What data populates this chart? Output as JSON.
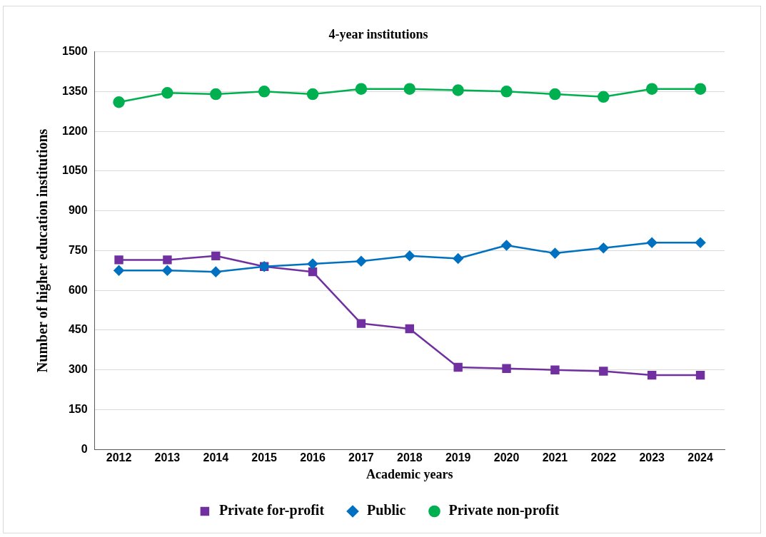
{
  "chart_data": {
    "type": "line",
    "title": "4-year institutions",
    "xlabel": "Academic years",
    "ylabel": "Number of higher education institutions",
    "categories": [
      "2012",
      "2013",
      "2014",
      "2015",
      "2016",
      "2017",
      "2018",
      "2019",
      "2020",
      "2021",
      "2022",
      "2023",
      "2024"
    ],
    "series": [
      {
        "name": "Private for-profit",
        "color": "#7030a0",
        "marker": "square",
        "values": [
          715,
          715,
          730,
          690,
          670,
          475,
          455,
          310,
          305,
          300,
          295,
          280,
          280
        ]
      },
      {
        "name": "Public",
        "color": "#0070c0",
        "marker": "diamond",
        "values": [
          675,
          675,
          670,
          690,
          700,
          710,
          730,
          720,
          770,
          740,
          760,
          780,
          780
        ]
      },
      {
        "name": "Private non-profit",
        "color": "#00b050",
        "marker": "circle",
        "values": [
          1310,
          1345,
          1340,
          1350,
          1340,
          1360,
          1360,
          1355,
          1350,
          1340,
          1330,
          1360,
          1360
        ]
      }
    ],
    "ylim": [
      0,
      1500
    ],
    "yticks": [
      0,
      150,
      300,
      450,
      600,
      750,
      900,
      1050,
      1200,
      1350,
      1500
    ],
    "grid": "y",
    "legend": "bottom"
  }
}
